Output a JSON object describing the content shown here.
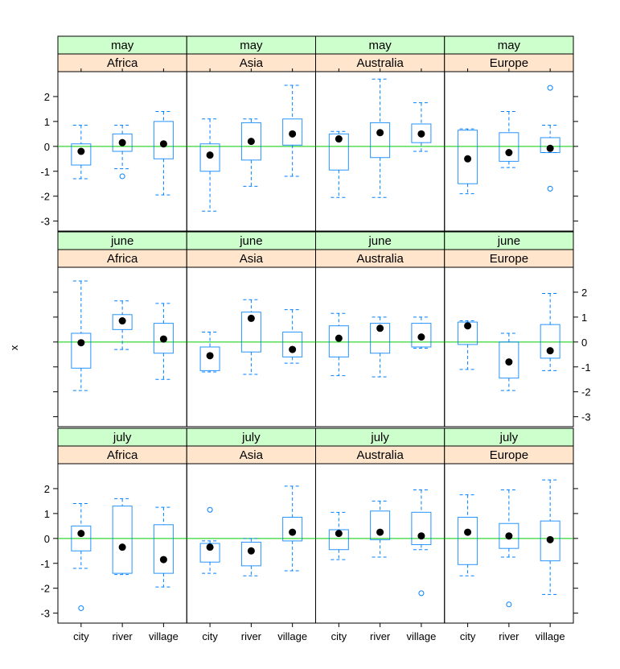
{
  "chart_data": {
    "type": "boxplot",
    "ylabel": "x",
    "ylim": [
      -3.4,
      3.0
    ],
    "yticks": [
      -3,
      -2,
      -1,
      0,
      1,
      2
    ],
    "categories": [
      "city",
      "river",
      "village"
    ],
    "reference_line": 0,
    "months": [
      "may",
      "june",
      "july"
    ],
    "regions": [
      "Africa",
      "Asia",
      "Australia",
      "Europe"
    ],
    "panels": [
      {
        "month": "may",
        "region": "Africa",
        "boxes": [
          {
            "category": "city",
            "lower_whisker": -1.3,
            "q1": -0.75,
            "median": -0.2,
            "q3": 0.1,
            "upper_whisker": 0.85,
            "outliers": []
          },
          {
            "category": "river",
            "lower_whisker": -0.9,
            "q1": -0.2,
            "median": 0.15,
            "q3": 0.5,
            "upper_whisker": 0.85,
            "outliers": [
              -1.2
            ]
          },
          {
            "category": "village",
            "lower_whisker": -1.95,
            "q1": -0.5,
            "median": 0.1,
            "q3": 1.0,
            "upper_whisker": 1.4,
            "outliers": []
          }
        ]
      },
      {
        "month": "may",
        "region": "Asia",
        "boxes": [
          {
            "category": "city",
            "lower_whisker": -2.6,
            "q1": -1.0,
            "median": -0.35,
            "q3": 0.1,
            "upper_whisker": 1.1,
            "outliers": []
          },
          {
            "category": "river",
            "lower_whisker": -1.6,
            "q1": -0.55,
            "median": 0.2,
            "q3": 0.95,
            "upper_whisker": 1.1,
            "outliers": []
          },
          {
            "category": "village",
            "lower_whisker": -1.2,
            "q1": 0.05,
            "median": 0.5,
            "q3": 1.1,
            "upper_whisker": 2.45,
            "outliers": []
          }
        ]
      },
      {
        "month": "may",
        "region": "Australia",
        "boxes": [
          {
            "category": "city",
            "lower_whisker": -2.05,
            "q1": -0.95,
            "median": 0.3,
            "q3": 0.5,
            "upper_whisker": 0.6,
            "outliers": []
          },
          {
            "category": "river",
            "lower_whisker": -2.05,
            "q1": -0.45,
            "median": 0.55,
            "q3": 0.95,
            "upper_whisker": 2.7,
            "outliers": []
          },
          {
            "category": "village",
            "lower_whisker": -0.2,
            "q1": 0.15,
            "median": 0.5,
            "q3": 0.9,
            "upper_whisker": 1.75,
            "outliers": []
          }
        ]
      },
      {
        "month": "may",
        "region": "Europe",
        "boxes": [
          {
            "category": "city",
            "lower_whisker": -1.9,
            "q1": -1.5,
            "median": -0.5,
            "q3": 0.65,
            "upper_whisker": 0.7,
            "outliers": []
          },
          {
            "category": "river",
            "lower_whisker": -0.85,
            "q1": -0.6,
            "median": -0.25,
            "q3": 0.55,
            "upper_whisker": 1.4,
            "outliers": []
          },
          {
            "category": "village",
            "lower_whisker": -0.25,
            "q1": -0.25,
            "median": -0.08,
            "q3": 0.35,
            "upper_whisker": 0.85,
            "outliers": [
              2.35,
              -1.7
            ]
          }
        ]
      },
      {
        "month": "june",
        "region": "Africa",
        "boxes": [
          {
            "category": "city",
            "lower_whisker": -1.95,
            "q1": -1.05,
            "median": -0.03,
            "q3": 0.35,
            "upper_whisker": 2.45,
            "outliers": []
          },
          {
            "category": "river",
            "lower_whisker": -0.3,
            "q1": 0.5,
            "median": 0.85,
            "q3": 1.1,
            "upper_whisker": 1.65,
            "outliers": []
          },
          {
            "category": "village",
            "lower_whisker": -1.5,
            "q1": -0.45,
            "median": 0.12,
            "q3": 0.75,
            "upper_whisker": 1.55,
            "outliers": []
          }
        ]
      },
      {
        "month": "june",
        "region": "Asia",
        "boxes": [
          {
            "category": "city",
            "lower_whisker": -1.2,
            "q1": -1.15,
            "median": -0.55,
            "q3": -0.2,
            "upper_whisker": 0.4,
            "outliers": []
          },
          {
            "category": "river",
            "lower_whisker": -1.3,
            "q1": -0.4,
            "median": 0.95,
            "q3": 1.2,
            "upper_whisker": 1.7,
            "outliers": []
          },
          {
            "category": "village",
            "lower_whisker": -0.85,
            "q1": -0.6,
            "median": -0.3,
            "q3": 0.4,
            "upper_whisker": 1.3,
            "outliers": []
          }
        ]
      },
      {
        "month": "june",
        "region": "Australia",
        "boxes": [
          {
            "category": "city",
            "lower_whisker": -1.35,
            "q1": -0.6,
            "median": 0.15,
            "q3": 0.65,
            "upper_whisker": 1.15,
            "outliers": []
          },
          {
            "category": "river",
            "lower_whisker": -1.4,
            "q1": -0.45,
            "median": 0.55,
            "q3": 0.75,
            "upper_whisker": 1.0,
            "outliers": []
          },
          {
            "category": "village",
            "lower_whisker": -0.25,
            "q1": -0.2,
            "median": 0.2,
            "q3": 0.75,
            "upper_whisker": 1.0,
            "outliers": []
          }
        ]
      },
      {
        "month": "june",
        "region": "Europe",
        "boxes": [
          {
            "category": "city",
            "lower_whisker": -1.1,
            "q1": -0.1,
            "median": 0.65,
            "q3": 0.8,
            "upper_whisker": 0.85,
            "outliers": []
          },
          {
            "category": "river",
            "lower_whisker": -1.95,
            "q1": -1.45,
            "median": -0.8,
            "q3": 0.0,
            "upper_whisker": 0.35,
            "outliers": []
          },
          {
            "category": "village",
            "lower_whisker": -1.15,
            "q1": -0.65,
            "median": -0.35,
            "q3": 0.7,
            "upper_whisker": 1.95,
            "outliers": []
          }
        ]
      },
      {
        "month": "july",
        "region": "Africa",
        "boxes": [
          {
            "category": "city",
            "lower_whisker": -1.2,
            "q1": -0.5,
            "median": 0.2,
            "q3": 0.5,
            "upper_whisker": 1.4,
            "outliers": [
              -2.8
            ]
          },
          {
            "category": "river",
            "lower_whisker": -1.45,
            "q1": -1.4,
            "median": -0.35,
            "q3": 1.3,
            "upper_whisker": 1.6,
            "outliers": []
          },
          {
            "category": "village",
            "lower_whisker": -1.95,
            "q1": -1.4,
            "median": -0.85,
            "q3": 0.55,
            "upper_whisker": 1.25,
            "outliers": []
          }
        ]
      },
      {
        "month": "july",
        "region": "Asia",
        "boxes": [
          {
            "category": "city",
            "lower_whisker": -1.4,
            "q1": -0.95,
            "median": -0.35,
            "q3": -0.2,
            "upper_whisker": -0.1,
            "outliers": [
              1.15
            ]
          },
          {
            "category": "river",
            "lower_whisker": -1.5,
            "q1": -1.1,
            "median": -0.5,
            "q3": -0.15,
            "upper_whisker": 0.0,
            "outliers": []
          },
          {
            "category": "village",
            "lower_whisker": -1.3,
            "q1": -0.1,
            "median": 0.25,
            "q3": 0.85,
            "upper_whisker": 2.1,
            "outliers": []
          }
        ]
      },
      {
        "month": "july",
        "region": "Australia",
        "boxes": [
          {
            "category": "city",
            "lower_whisker": -0.85,
            "q1": -0.45,
            "median": 0.2,
            "q3": 0.35,
            "upper_whisker": 1.05,
            "outliers": []
          },
          {
            "category": "river",
            "lower_whisker": -0.75,
            "q1": -0.05,
            "median": 0.25,
            "q3": 1.1,
            "upper_whisker": 1.5,
            "outliers": []
          },
          {
            "category": "village",
            "lower_whisker": -0.45,
            "q1": -0.25,
            "median": 0.1,
            "q3": 1.05,
            "upper_whisker": 1.95,
            "outliers": [
              -2.2
            ]
          }
        ]
      },
      {
        "month": "july",
        "region": "Europe",
        "boxes": [
          {
            "category": "city",
            "lower_whisker": -1.5,
            "q1": -1.05,
            "median": 0.25,
            "q3": 0.85,
            "upper_whisker": 1.75,
            "outliers": []
          },
          {
            "category": "river",
            "lower_whisker": -0.75,
            "q1": -0.4,
            "median": 0.1,
            "q3": 0.6,
            "upper_whisker": 1.95,
            "outliers": [
              -2.65
            ]
          },
          {
            "category": "village",
            "lower_whisker": -2.25,
            "q1": -0.9,
            "median": -0.05,
            "q3": 0.7,
            "upper_whisker": 2.35,
            "outliers": []
          }
        ]
      }
    ]
  }
}
